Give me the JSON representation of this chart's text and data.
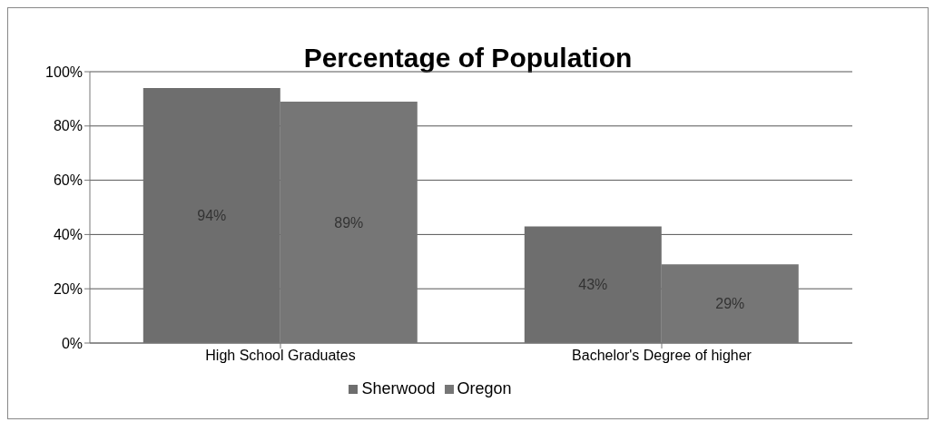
{
  "chart_data": {
    "type": "bar",
    "title": "Percentage of Population",
    "categories": [
      "High School Graduates",
      "Bachelor's Degree of higher"
    ],
    "series": [
      {
        "name": "Sherwood",
        "color": "#6e6e6e",
        "values": [
          94,
          43
        ],
        "value_labels": [
          "94%",
          "43%"
        ]
      },
      {
        "name": "Oregon",
        "color": "#767676",
        "values": [
          89,
          29
        ],
        "value_labels": [
          "89%",
          "29%"
        ]
      }
    ],
    "ylim": [
      0,
      100
    ],
    "yticks": [
      {
        "value": 0,
        "label": "0%"
      },
      {
        "value": 20,
        "label": "20%"
      },
      {
        "value": 40,
        "label": "40%"
      },
      {
        "value": 60,
        "label": "60%"
      },
      {
        "value": 80,
        "label": "80%"
      },
      {
        "value": 100,
        "label": "100%"
      }
    ],
    "grid": "y",
    "legend": "bottom"
  }
}
